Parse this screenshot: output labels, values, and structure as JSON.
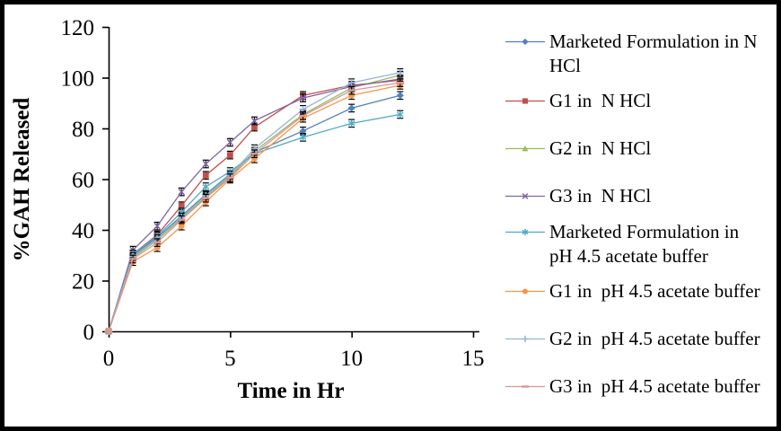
{
  "chart_data": {
    "type": "line",
    "title": "",
    "xlabel": "Time in Hr",
    "ylabel": "%GAH Released",
    "x": [
      0,
      1,
      2,
      3,
      4,
      5,
      6,
      8,
      10,
      12
    ],
    "xlim": [
      0,
      15
    ],
    "ylim": [
      0,
      120
    ],
    "x_ticks": [
      0,
      5,
      10,
      15
    ],
    "y_ticks": [
      0,
      20,
      40,
      60,
      80,
      100,
      120
    ],
    "grid": false,
    "legend_position": "right",
    "error_bar": 1.5,
    "axis_color": "#000000",
    "series": [
      {
        "name": "Marketed Formulation in N HCl",
        "color": "#4F81BD",
        "marker": "diamond",
        "values": [
          0,
          30,
          37,
          45.5,
          54,
          62,
          70.5,
          79,
          88,
          93
        ]
      },
      {
        "name": "G1 in  N HCl",
        "color": "#C0504D",
        "marker": "square",
        "values": [
          0,
          30.5,
          38,
          49.5,
          61.5,
          69.5,
          80.5,
          93,
          97,
          99
        ]
      },
      {
        "name": "G2 in  N HCl",
        "color": "#9BBB59",
        "marker": "triangle",
        "values": [
          0,
          29,
          36,
          44.5,
          53,
          61,
          71,
          85.5,
          96,
          101
        ]
      },
      {
        "name": "G3 in  N HCl",
        "color": "#8064A2",
        "marker": "x",
        "values": [
          0,
          32,
          41.5,
          55,
          66,
          74.5,
          83,
          92,
          96.5,
          99.5
        ]
      },
      {
        "name": "Marketed Formulation in pH 4.5 acetate buffer",
        "color": "#4BACC6",
        "marker": "star",
        "values": [
          0,
          30.5,
          37.5,
          47,
          57,
          63,
          70,
          76.5,
          82,
          85.5
        ]
      },
      {
        "name": "G1 in  pH 4.5 acetate buffer",
        "color": "#F79646",
        "marker": "circle",
        "values": [
          0,
          27.5,
          33,
          41.5,
          51,
          60,
          68,
          84,
          93,
          97
        ]
      },
      {
        "name": "G2 in  pH 4.5 acetate buffer",
        "color": "#95B3D7",
        "marker": "plus",
        "values": [
          0,
          29.5,
          36.5,
          45,
          53.5,
          61.5,
          72,
          87.5,
          98,
          102
        ]
      },
      {
        "name": "G3 in  pH 4.5 acetate buffer",
        "color": "#D99694",
        "marker": "dash",
        "values": [
          0,
          28.5,
          35,
          44,
          52.5,
          60.5,
          70,
          85,
          95,
          98
        ]
      }
    ]
  },
  "frame": {
    "border_color": "#000000",
    "background": "#FFFFFF"
  }
}
